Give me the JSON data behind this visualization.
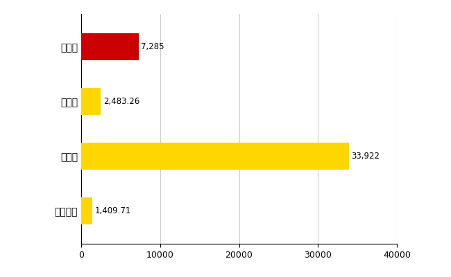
{
  "categories": [
    "全国平均",
    "県最大",
    "県平均",
    "豊田市"
  ],
  "values": [
    1409.71,
    33922,
    2483.26,
    7285
  ],
  "bar_colors": [
    "#FFD700",
    "#FFD700",
    "#FFD700",
    "#CC0000"
  ],
  "bar_labels": [
    "1,409.71",
    "33,922",
    "2,483.26",
    "7,285"
  ],
  "xlim": [
    0,
    40000
  ],
  "xticks": [
    0,
    10000,
    20000,
    30000,
    40000
  ],
  "xtick_labels": [
    "0",
    "10000",
    "20000",
    "30000",
    "40000"
  ],
  "figsize": [
    6.5,
    4.0
  ],
  "dpi": 100,
  "background_color": "#FFFFFF",
  "grid_color": "#CCCCCC",
  "label_fontsize": 10,
  "tick_fontsize": 9,
  "bar_label_fontsize": 8.5,
  "bar_height": 0.5
}
